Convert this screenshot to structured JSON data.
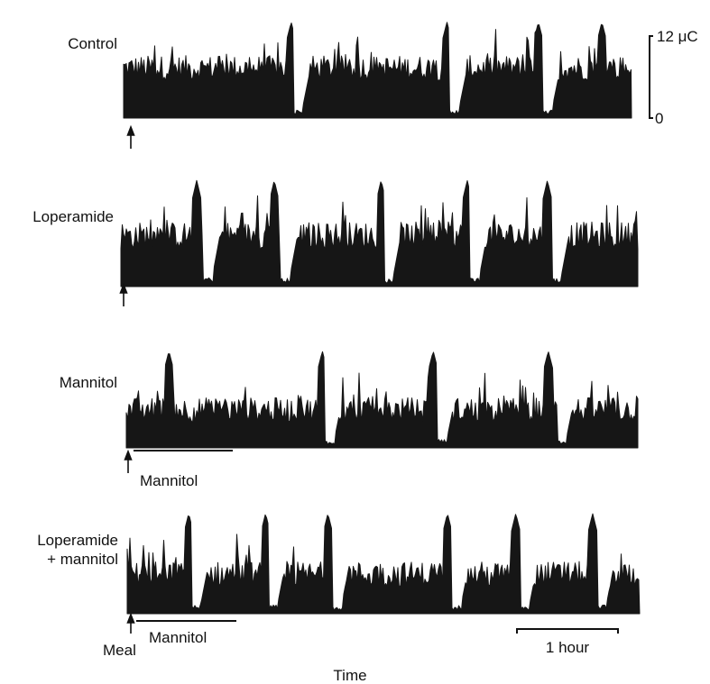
{
  "chart_data": {
    "type": "area",
    "xlabel": "Time",
    "scale_bar_time": "1 hour",
    "scale_bar_amplitude": {
      "top_label": "12 μC",
      "bottom_label": "0"
    },
    "meal_label": "Meal",
    "mannitol_bar_label": "Mannitol",
    "y_range_uC": [
      0,
      12
    ],
    "panels": [
      {
        "name": "Control",
        "label_lines": [
          "Control"
        ],
        "mannitol_bar": false,
        "baseline_uC": 6,
        "silent_phases_h": [
          2.0,
          3.85,
          4.95
        ],
        "peaks_h": [
          1.98,
          3.82,
          4.9,
          5.65
        ]
      },
      {
        "name": "Loperamide",
        "label_lines": [
          "Loperamide"
        ],
        "mannitol_bar": false,
        "baseline_uC": 5.5,
        "silent_phases_h": [
          0.95,
          1.85,
          3.05,
          4.05,
          5.0
        ],
        "peaks_h": [
          0.88,
          1.78,
          3.02,
          4.02,
          4.95
        ]
      },
      {
        "name": "Mannitol",
        "label_lines": [
          "Mannitol"
        ],
        "mannitol_bar": true,
        "baseline_uC": 4.5,
        "silent_phases_h": [
          2.33,
          3.65,
          5.05
        ],
        "peaks_h": [
          0.5,
          2.3,
          3.6,
          4.95
        ]
      },
      {
        "name": "Loperamide + mannitol",
        "label_lines": [
          "Loperamide",
          "+ mannitol"
        ],
        "mannitol_bar": true,
        "baseline_uC": 4.5,
        "silent_phases_h": [
          0.75,
          1.65,
          2.4,
          3.8,
          4.6,
          5.5
        ],
        "peaks_h": [
          0.72,
          1.62,
          2.35,
          3.75,
          4.55,
          5.45
        ]
      }
    ]
  }
}
